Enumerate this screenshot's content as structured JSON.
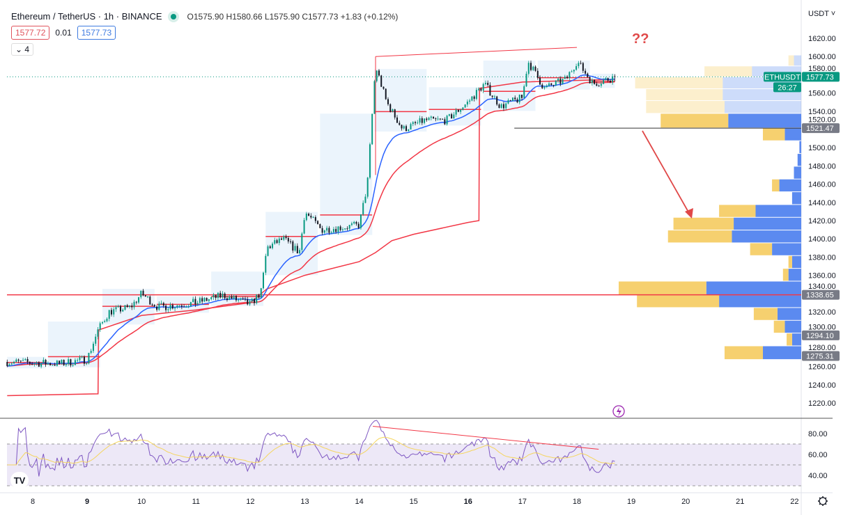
{
  "header": {
    "symbol": "Ethereum / TetherUS · 1h · BINANCE",
    "ohlc": "O1575.90 H1580.66 L1575.90 C1577.73 +1.83 (+0.12%)",
    "sell_price": "1577.72",
    "spread": "0.01",
    "buy_price": "1577.73",
    "collapse_label": "4"
  },
  "annotation_text": "??",
  "axis_unit": "USDT",
  "price_label": {
    "symbol": "ETHUSDT",
    "price": "1577.73",
    "countdown": "26:27"
  },
  "colors": {
    "up": "#089981",
    "down": "#131722",
    "ema": "#2962ff",
    "ma": "#f23645",
    "profile_up": "#f6d06f",
    "profile_down": "#5b8af0",
    "rsi": "#7e57c2",
    "rsi_ma": "#f5d55c",
    "annot": "#e04848"
  },
  "chart_data": {
    "type": "candlestick",
    "x_ticks": [
      "8",
      "9",
      "10",
      "11",
      "12",
      "13",
      "14",
      "15",
      "16",
      "17",
      "18",
      "19",
      "20",
      "21",
      "22"
    ],
    "y_ticks": [
      "1220.00",
      "1240.00",
      "1260.00",
      "1280.00",
      "1300.00",
      "1320.00",
      "1340.00",
      "1360.00",
      "1380.00",
      "1400.00",
      "1420.00",
      "1440.00",
      "1460.00",
      "1480.00",
      "1500.00",
      "1520.00",
      "1540.00",
      "1560.00",
      "1580.00",
      "1600.00",
      "1620.00"
    ],
    "ylim": [
      1220,
      1620
    ],
    "price_path_day_close": [
      [
        7.53,
        1265
      ],
      [
        8.5,
        1263
      ],
      [
        9.0,
        1268
      ],
      [
        9.2,
        1300
      ],
      [
        9.4,
        1320
      ],
      [
        9.8,
        1325
      ],
      [
        10.0,
        1340
      ],
      [
        10.3,
        1325
      ],
      [
        11.0,
        1330
      ],
      [
        11.5,
        1338
      ],
      [
        12.0,
        1328
      ],
      [
        12.2,
        1342
      ],
      [
        12.3,
        1390
      ],
      [
        12.6,
        1400
      ],
      [
        12.9,
        1385
      ],
      [
        13.0,
        1430
      ],
      [
        13.3,
        1410
      ],
      [
        14.0,
        1415
      ],
      [
        14.15,
        1460
      ],
      [
        14.3,
        1590
      ],
      [
        14.5,
        1550
      ],
      [
        14.8,
        1520
      ],
      [
        15.2,
        1530
      ],
      [
        15.6,
        1530
      ],
      [
        16.0,
        1550
      ],
      [
        16.3,
        1570
      ],
      [
        16.6,
        1545
      ],
      [
        17.0,
        1555
      ],
      [
        17.1,
        1595
      ],
      [
        17.4,
        1565
      ],
      [
        17.8,
        1575
      ],
      [
        18.0,
        1595
      ],
      [
        18.3,
        1570
      ],
      [
        18.7,
        1577.73
      ]
    ],
    "vwap_line": [
      [
        7.53,
        1228
      ],
      [
        9.2,
        1230
      ],
      [
        9.21,
        1300
      ],
      [
        10.0,
        1316
      ],
      [
        11.0,
        1322
      ],
      [
        12.0,
        1330
      ],
      [
        12.3,
        1345
      ],
      [
        13.0,
        1360
      ],
      [
        14.0,
        1375
      ],
      [
        14.3,
        1385
      ],
      [
        14.6,
        1398
      ],
      [
        15.0,
        1405
      ],
      [
        16.0,
        1418
      ],
      [
        16.2,
        1420
      ],
      [
        16.21,
        1565
      ],
      [
        17.0,
        1572
      ],
      [
        18.7,
        1575
      ]
    ],
    "price_labels": [
      "1338.65",
      "1294.10",
      "1275.31",
      "1521.47"
    ],
    "horizontal_lines": [
      1338.65,
      1521.47
    ],
    "trendline": [
      [
        14.3,
        1600
      ],
      [
        18.0,
        1610
      ]
    ],
    "volume_profile": [
      {
        "lo": 1590,
        "hi": 1602,
        "up": 3,
        "down": 4,
        "light": true
      },
      {
        "lo": 1578,
        "hi": 1590,
        "up": 26,
        "down": 27,
        "light": true
      },
      {
        "lo": 1565,
        "hi": 1578,
        "up": 48,
        "down": 43,
        "light": true
      },
      {
        "lo": 1552,
        "hi": 1565,
        "up": 42,
        "down": 43,
        "light": true
      },
      {
        "lo": 1538,
        "hi": 1552,
        "up": 43,
        "down": 42,
        "light": true
      },
      {
        "lo": 1522,
        "hi": 1538,
        "up": 37,
        "down": 40
      },
      {
        "lo": 1508,
        "hi": 1522,
        "up": 12,
        "down": 9
      },
      {
        "lo": 1494,
        "hi": 1508,
        "up": 0,
        "down": 1
      },
      {
        "lo": 1480,
        "hi": 1494,
        "up": 0,
        "down": 2
      },
      {
        "lo": 1466,
        "hi": 1480,
        "up": 0,
        "down": 4
      },
      {
        "lo": 1452,
        "hi": 1466,
        "up": 4,
        "down": 12
      },
      {
        "lo": 1438,
        "hi": 1452,
        "up": 0,
        "down": 5
      },
      {
        "lo": 1424,
        "hi": 1438,
        "up": 20,
        "down": 25
      },
      {
        "lo": 1410,
        "hi": 1424,
        "up": 33,
        "down": 37
      },
      {
        "lo": 1396,
        "hi": 1410,
        "up": 35,
        "down": 38
      },
      {
        "lo": 1382,
        "hi": 1396,
        "up": 12,
        "down": 16
      },
      {
        "lo": 1368,
        "hi": 1382,
        "up": 2,
        "down": 5
      },
      {
        "lo": 1354,
        "hi": 1368,
        "up": 3,
        "down": 7
      },
      {
        "lo": 1339,
        "hi": 1354,
        "up": 48,
        "down": 52
      },
      {
        "lo": 1325,
        "hi": 1339,
        "up": 45,
        "down": 45
      },
      {
        "lo": 1311,
        "hi": 1325,
        "up": 13,
        "down": 13
      },
      {
        "lo": 1297,
        "hi": 1311,
        "up": 6,
        "down": 9
      },
      {
        "lo": 1283,
        "hi": 1297,
        "up": 3,
        "down": 5
      },
      {
        "lo": 1268,
        "hi": 1283,
        "up": 21,
        "down": 21
      }
    ],
    "rsi": {
      "y_ticks": [
        "40.00",
        "60.00",
        "80.00"
      ],
      "band": [
        30,
        70
      ],
      "divergence_line": [
        [
          14.25,
          87
        ],
        [
          18.4,
          65
        ]
      ]
    }
  }
}
